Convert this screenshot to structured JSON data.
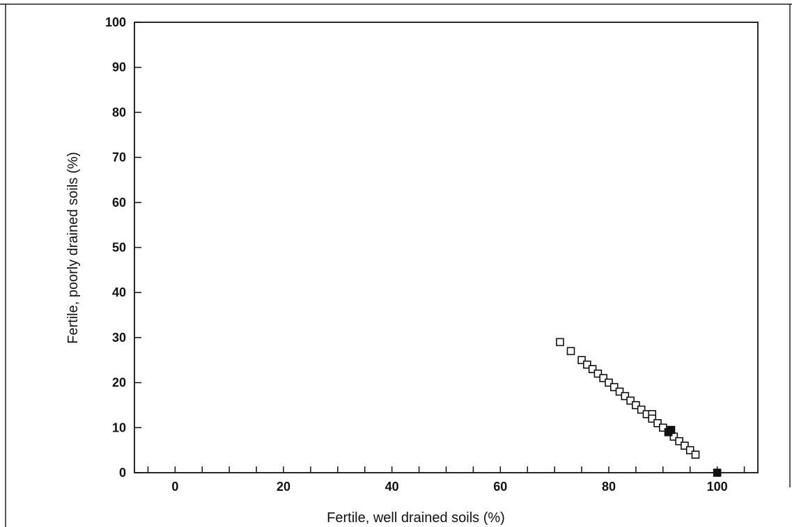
{
  "chart_data": {
    "type": "scatter",
    "title": "",
    "xlabel": "Fertile, well drained soils (%)",
    "ylabel": "Fertile, poorly drained soils (%)",
    "xlim": [
      -7.5,
      107.5
    ],
    "ylim": [
      0,
      100
    ],
    "x_ticks": [
      0,
      20,
      40,
      60,
      80,
      100
    ],
    "x_tick_labels": [
      "0",
      "20",
      "40",
      "60",
      "80",
      "100"
    ],
    "x_minor_ticks": [
      -5,
      0,
      5,
      10,
      15,
      20,
      25,
      30,
      35,
      40,
      45,
      50,
      55,
      60,
      65,
      70,
      75,
      80,
      85,
      90,
      95,
      100,
      105
    ],
    "y_ticks": [
      0,
      10,
      20,
      30,
      40,
      50,
      60,
      70,
      80,
      90,
      100
    ],
    "y_tick_labels": [
      "0",
      "10",
      "20",
      "30",
      "40",
      "50",
      "60",
      "70",
      "80",
      "90",
      "100"
    ],
    "grid": false,
    "legend": "none",
    "series": [
      {
        "marker": "open-square",
        "color": "#111111",
        "points": [
          [
            71,
            29
          ],
          [
            73,
            27
          ],
          [
            75,
            25
          ],
          [
            76,
            24
          ],
          [
            77,
            23
          ],
          [
            78,
            22
          ],
          [
            79,
            21
          ],
          [
            80,
            20
          ],
          [
            81,
            19
          ],
          [
            82,
            18
          ],
          [
            83,
            17
          ],
          [
            84,
            16
          ],
          [
            85,
            15
          ],
          [
            86,
            14
          ],
          [
            87,
            13
          ],
          [
            88,
            13
          ],
          [
            88,
            12
          ],
          [
            89,
            11
          ],
          [
            90,
            10
          ],
          [
            91,
            9
          ],
          [
            92,
            8
          ],
          [
            93,
            7
          ],
          [
            94,
            6
          ],
          [
            95,
            5
          ],
          [
            96,
            4
          ]
        ]
      },
      {
        "marker": "filled-square",
        "color": "#111111",
        "points": [
          [
            91,
            9
          ],
          [
            91.5,
            9.5
          ],
          [
            100,
            0
          ]
        ]
      }
    ]
  }
}
